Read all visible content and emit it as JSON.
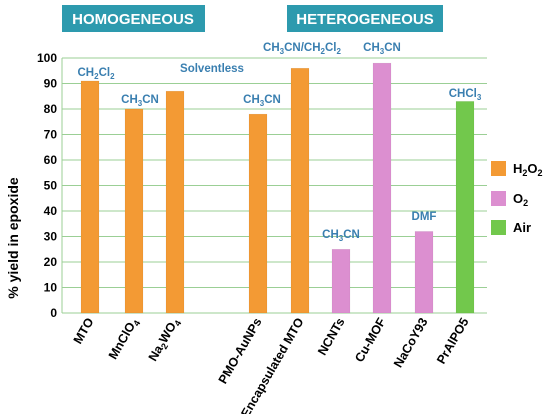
{
  "colors": {
    "grid": "#9bcf95",
    "header_bg": "#2d9aae",
    "annotation": "#3a7fb0",
    "series": {
      "H2O2": "#f39a34",
      "O2": "#dc8fd0",
      "Air": "#72c84c"
    }
  },
  "headers": {
    "homogeneous": "HOMOGENEOUS",
    "heterogeneous": "HETEROGENEOUS"
  },
  "chart_data": {
    "type": "bar",
    "ylabel": "% yield in epoxide",
    "ylim": [
      0,
      100
    ],
    "ytick_step": 10,
    "grid": true,
    "legend_placement": "right",
    "legend": [
      {
        "key": "H2O2",
        "label": "H",
        "sub": "2",
        "label2": "O",
        "sub2": "2"
      },
      {
        "key": "O2",
        "label": "O",
        "sub": "2"
      },
      {
        "key": "Air",
        "label": "Air"
      }
    ],
    "categories": [
      {
        "label": "MTO",
        "sub": []
      },
      {
        "label": "MnClO4",
        "parts": [
          [
            "MnClO",
            ""
          ],
          [
            "4",
            "sub"
          ]
        ]
      },
      {
        "label": "Na2WO4",
        "parts": [
          [
            "Na",
            ""
          ],
          [
            "2",
            "sub"
          ],
          [
            "WO",
            ""
          ],
          [
            "4",
            "sub"
          ]
        ]
      },
      {
        "label": "PMO-AuNPs"
      },
      {
        "label": "Encapsulated MTO"
      },
      {
        "label": "NCNTs"
      },
      {
        "label": "Cu-MOF"
      },
      {
        "label": "NaCoY93"
      },
      {
        "label": "PrAlPO5"
      }
    ],
    "bars": [
      {
        "category": "MTO",
        "value": 91,
        "oxidant": "H2O2",
        "solvent": [
          [
            "CH",
            ""
          ],
          [
            "2",
            "sub"
          ],
          [
            "Cl",
            ""
          ],
          [
            "2",
            "sub"
          ]
        ]
      },
      {
        "category": "MnClO4",
        "value": 80,
        "oxidant": "H2O2",
        "solvent": [
          [
            "CH",
            ""
          ],
          [
            "3",
            "sub"
          ],
          [
            "CN",
            ""
          ]
        ]
      },
      {
        "category": "Na2WO4",
        "value": 87,
        "oxidant": "H2O2",
        "solvent": [
          [
            "Solventless",
            ""
          ]
        ]
      },
      {
        "category": "PMO-AuNPs",
        "value": 78,
        "oxidant": "H2O2",
        "solvent": [
          [
            "CH",
            ""
          ],
          [
            "3",
            "sub"
          ],
          [
            "CN",
            ""
          ]
        ]
      },
      {
        "category": "Encapsulated MTO",
        "value": 96,
        "oxidant": "H2O2",
        "solvent": [
          [
            "CH",
            ""
          ],
          [
            "3",
            "sub"
          ],
          [
            "CN/CH",
            ""
          ],
          [
            "2",
            "sub"
          ],
          [
            "Cl",
            ""
          ],
          [
            "2",
            "sub"
          ]
        ]
      },
      {
        "category": "NCNTs",
        "value": 25,
        "oxidant": "O2",
        "solvent": [
          [
            "CH",
            ""
          ],
          [
            "3",
            "sub"
          ],
          [
            "CN",
            ""
          ]
        ]
      },
      {
        "category": "Cu-MOF",
        "value": 98,
        "oxidant": "O2",
        "solvent": [
          [
            "CH",
            ""
          ],
          [
            "3",
            "sub"
          ],
          [
            "CN",
            ""
          ]
        ]
      },
      {
        "category": "NaCoY93",
        "value": 32,
        "oxidant": "O2",
        "solvent": [
          [
            "DMF",
            ""
          ]
        ]
      },
      {
        "category": "PrAlPO5",
        "value": 83,
        "oxidant": "Air",
        "solvent": [
          [
            "CHCl",
            ""
          ],
          [
            "3",
            "sub"
          ]
        ]
      }
    ]
  }
}
